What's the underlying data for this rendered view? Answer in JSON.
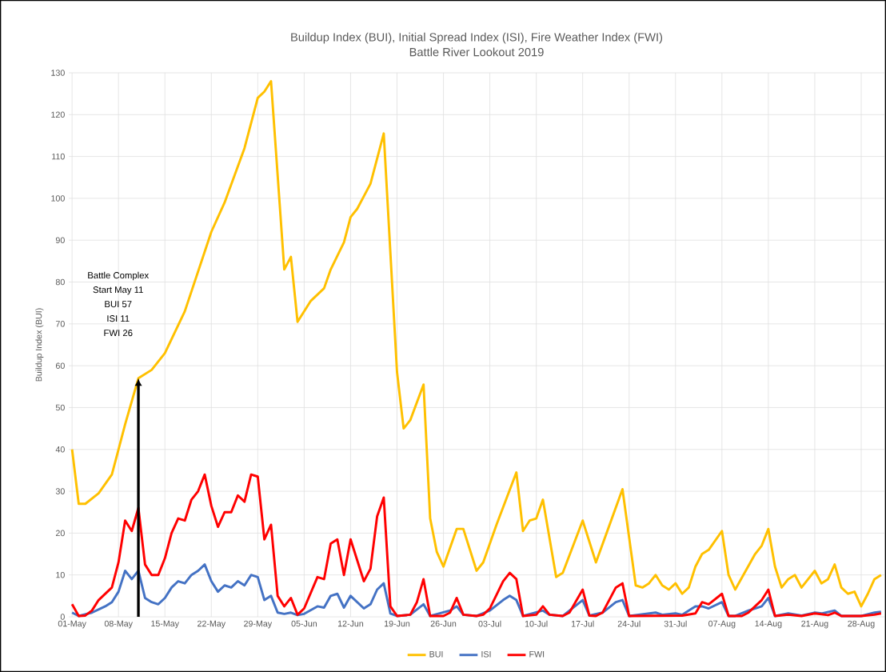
{
  "chart_data": {
    "type": "line",
    "title": "Buildup Index (BUI), Initial Spread Index (ISI), Fire Weather Index (FWI)",
    "subtitle": "Battle River Lookout 2019",
    "ylabel": "Buildup Index (BUI)",
    "xlim": [
      "2019-04-30T12:00",
      "2019-08-31T12:00"
    ],
    "ylim": [
      0,
      130
    ],
    "xticks": [
      {
        "value": "2019-05-01",
        "label": "01-May"
      },
      {
        "value": "2019-05-08",
        "label": "08-May"
      },
      {
        "value": "2019-05-15",
        "label": "15-May"
      },
      {
        "value": "2019-05-22",
        "label": "22-May"
      },
      {
        "value": "2019-05-29",
        "label": "29-May"
      },
      {
        "value": "2019-06-05",
        "label": "05-Jun"
      },
      {
        "value": "2019-06-12",
        "label": "12-Jun"
      },
      {
        "value": "2019-06-19",
        "label": "19-Jun"
      },
      {
        "value": "2019-06-26",
        "label": "26-Jun"
      },
      {
        "value": "2019-07-03",
        "label": "03-Jul"
      },
      {
        "value": "2019-07-10",
        "label": "10-Jul"
      },
      {
        "value": "2019-07-17",
        "label": "17-Jul"
      },
      {
        "value": "2019-07-24",
        "label": "24-Jul"
      },
      {
        "value": "2019-07-31",
        "label": "31-Jul"
      },
      {
        "value": "2019-08-07",
        "label": "07-Aug"
      },
      {
        "value": "2019-08-14",
        "label": "14-Aug"
      },
      {
        "value": "2019-08-21",
        "label": "21-Aug"
      },
      {
        "value": "2019-08-28",
        "label": "28-Aug"
      }
    ],
    "yticks": [
      0,
      10,
      20,
      30,
      40,
      50,
      60,
      70,
      80,
      90,
      100,
      110,
      120,
      130
    ],
    "grid": true,
    "legend": "bottom",
    "marker": "none",
    "line_style": "solid",
    "annotations": [
      "Battle Complex",
      "Start May 11",
      "BUI 57",
      "ISI 11",
      "FWI 26"
    ],
    "ref_lines": [
      {
        "axis": "x",
        "value": "2019-05-11",
        "color": "#000000"
      }
    ],
    "series": [
      {
        "name": "BUI",
        "color": "#ffc000",
        "x": [
          "2019-05-01",
          "2019-05-02",
          "2019-05-03",
          "2019-05-05",
          "2019-05-07",
          "2019-05-08",
          "2019-05-09",
          "2019-05-10",
          "2019-05-11",
          "2019-05-13",
          "2019-05-15",
          "2019-05-18",
          "2019-05-22",
          "2019-05-24",
          "2019-05-27",
          "2019-05-29",
          "2019-05-30",
          "2019-05-31",
          "2019-06-02",
          "2019-06-03",
          "2019-06-04",
          "2019-06-06",
          "2019-06-08",
          "2019-06-09",
          "2019-06-11",
          "2019-06-12",
          "2019-06-13",
          "2019-06-15",
          "2019-06-17",
          "2019-06-19",
          "2019-06-20",
          "2019-06-21",
          "2019-06-23",
          "2019-06-24",
          "2019-06-25",
          "2019-06-26",
          "2019-06-28",
          "2019-06-29",
          "2019-07-01",
          "2019-07-02",
          "2019-07-04",
          "2019-07-07",
          "2019-07-08",
          "2019-07-09",
          "2019-07-10",
          "2019-07-11",
          "2019-07-13",
          "2019-07-14",
          "2019-07-17",
          "2019-07-19",
          "2019-07-23",
          "2019-07-25",
          "2019-07-26",
          "2019-07-27",
          "2019-07-28",
          "2019-07-29",
          "2019-07-30",
          "2019-07-31",
          "2019-08-01",
          "2019-08-02",
          "2019-08-03",
          "2019-08-04",
          "2019-08-05",
          "2019-08-07",
          "2019-08-08",
          "2019-08-09",
          "2019-08-12",
          "2019-08-13",
          "2019-08-14",
          "2019-08-15",
          "2019-08-16",
          "2019-08-17",
          "2019-08-18",
          "2019-08-19",
          "2019-08-21",
          "2019-08-22",
          "2019-08-23",
          "2019-08-24",
          "2019-08-25",
          "2019-08-26",
          "2019-08-27",
          "2019-08-28",
          "2019-08-29",
          "2019-08-30",
          "2019-08-31"
        ],
        "values": [
          40,
          27,
          27,
          29.5,
          34,
          40,
          46,
          51.5,
          57,
          59,
          63,
          73,
          92,
          99,
          112,
          124,
          125.5,
          128,
          83,
          86,
          70.5,
          75.5,
          78.5,
          83,
          89.5,
          95.5,
          97.5,
          103.5,
          115.5,
          58.5,
          45,
          47,
          55.5,
          23.5,
          15.5,
          12,
          21,
          21,
          11,
          13,
          22,
          34.5,
          20.5,
          23,
          23.5,
          28,
          9.5,
          10.5,
          23,
          13,
          30.5,
          7.5,
          7,
          8,
          10,
          7.5,
          6.5,
          8,
          5.5,
          7,
          12,
          15,
          16,
          20.5,
          10,
          6.5,
          15,
          17,
          21,
          12,
          7,
          9,
          10,
          7,
          11,
          8,
          9,
          12.5,
          7,
          5.5,
          6,
          2.5,
          5.5,
          9,
          10
        ]
      },
      {
        "name": "ISI",
        "color": "#4472c4",
        "x": [
          "2019-05-01",
          "2019-05-02",
          "2019-05-04",
          "2019-05-06",
          "2019-05-07",
          "2019-05-08",
          "2019-05-09",
          "2019-05-10",
          "2019-05-11",
          "2019-05-12",
          "2019-05-13",
          "2019-05-14",
          "2019-05-15",
          "2019-05-16",
          "2019-05-17",
          "2019-05-18",
          "2019-05-19",
          "2019-05-20",
          "2019-05-21",
          "2019-05-22",
          "2019-05-23",
          "2019-05-24",
          "2019-05-25",
          "2019-05-26",
          "2019-05-27",
          "2019-05-28",
          "2019-05-29",
          "2019-05-30",
          "2019-05-31",
          "2019-06-01",
          "2019-06-02",
          "2019-06-03",
          "2019-06-04",
          "2019-06-05",
          "2019-06-07",
          "2019-06-08",
          "2019-06-09",
          "2019-06-10",
          "2019-06-11",
          "2019-06-12",
          "2019-06-14",
          "2019-06-15",
          "2019-06-16",
          "2019-06-17",
          "2019-06-18",
          "2019-06-19",
          "2019-06-21",
          "2019-06-23",
          "2019-06-24",
          "2019-06-27",
          "2019-06-28",
          "2019-06-29",
          "2019-07-01",
          "2019-07-03",
          "2019-07-05",
          "2019-07-06",
          "2019-07-07",
          "2019-07-08",
          "2019-07-11",
          "2019-07-12",
          "2019-07-14",
          "2019-07-17",
          "2019-07-18",
          "2019-07-20",
          "2019-07-22",
          "2019-07-23",
          "2019-07-24",
          "2019-07-28",
          "2019-07-29",
          "2019-07-31",
          "2019-08-01",
          "2019-08-03",
          "2019-08-04",
          "2019-08-05",
          "2019-08-07",
          "2019-08-08",
          "2019-08-09",
          "2019-08-11",
          "2019-08-12",
          "2019-08-13",
          "2019-08-14",
          "2019-08-15",
          "2019-08-17",
          "2019-08-19",
          "2019-08-21",
          "2019-08-22",
          "2019-08-24",
          "2019-08-25",
          "2019-08-28",
          "2019-08-30",
          "2019-08-31"
        ],
        "values": [
          1,
          0.2,
          1,
          2.5,
          3.5,
          6,
          11,
          9,
          11,
          4.5,
          3.5,
          3,
          4.5,
          7,
          8.5,
          8,
          10,
          11,
          12.5,
          8.5,
          6,
          7.5,
          7,
          8.5,
          7.5,
          10,
          9.5,
          4,
          5,
          1,
          0.7,
          1,
          0.4,
          0.7,
          2.5,
          2.2,
          5,
          5.5,
          2.2,
          5,
          2,
          3,
          6.5,
          8,
          0.8,
          0.2,
          0.5,
          3,
          0.2,
          1.5,
          2.5,
          0.5,
          0.2,
          1.5,
          4,
          5,
          4,
          0.2,
          1.5,
          0.5,
          0.2,
          4,
          0.3,
          1,
          3.5,
          4,
          0.2,
          1,
          0.5,
          0.8,
          0.5,
          2.5,
          2.5,
          2,
          3.5,
          0.2,
          0.2,
          1.5,
          2,
          2.5,
          4.5,
          0.2,
          0.8,
          0.3,
          1,
          0.8,
          1.5,
          0.2,
          0.2,
          1,
          1.2
        ]
      },
      {
        "name": "FWI",
        "color": "#ff0000",
        "x": [
          "2019-05-01",
          "2019-05-02",
          "2019-05-03",
          "2019-05-04",
          "2019-05-05",
          "2019-05-07",
          "2019-05-08",
          "2019-05-09",
          "2019-05-10",
          "2019-05-11",
          "2019-05-12",
          "2019-05-13",
          "2019-05-14",
          "2019-05-15",
          "2019-05-16",
          "2019-05-17",
          "2019-05-18",
          "2019-05-19",
          "2019-05-20",
          "2019-05-21",
          "2019-05-22",
          "2019-05-23",
          "2019-05-24",
          "2019-05-25",
          "2019-05-26",
          "2019-05-27",
          "2019-05-28",
          "2019-05-29",
          "2019-05-30",
          "2019-05-31",
          "2019-06-01",
          "2019-06-02",
          "2019-06-03",
          "2019-06-04",
          "2019-06-05",
          "2019-06-07",
          "2019-06-08",
          "2019-06-09",
          "2019-06-10",
          "2019-06-11",
          "2019-06-12",
          "2019-06-14",
          "2019-06-15",
          "2019-06-16",
          "2019-06-17",
          "2019-06-18",
          "2019-06-19",
          "2019-06-21",
          "2019-06-22",
          "2019-06-23",
          "2019-06-24",
          "2019-06-26",
          "2019-06-27",
          "2019-06-28",
          "2019-06-29",
          "2019-07-01",
          "2019-07-02",
          "2019-07-03",
          "2019-07-05",
          "2019-07-06",
          "2019-07-07",
          "2019-07-08",
          "2019-07-10",
          "2019-07-11",
          "2019-07-12",
          "2019-07-14",
          "2019-07-15",
          "2019-07-17",
          "2019-07-18",
          "2019-07-19",
          "2019-07-20",
          "2019-07-22",
          "2019-07-23",
          "2019-07-24",
          "2019-08-01",
          "2019-08-03",
          "2019-08-04",
          "2019-08-05",
          "2019-08-07",
          "2019-08-08",
          "2019-08-10",
          "2019-08-11",
          "2019-08-12",
          "2019-08-13",
          "2019-08-14",
          "2019-08-15",
          "2019-08-17",
          "2019-08-19",
          "2019-08-21",
          "2019-08-23",
          "2019-08-24",
          "2019-08-25",
          "2019-08-28",
          "2019-08-30",
          "2019-08-31"
        ],
        "values": [
          3,
          0.2,
          0.3,
          1.5,
          4,
          7,
          13,
          23,
          20.5,
          26,
          12.5,
          10,
          10,
          14,
          20,
          23.5,
          23,
          28,
          30,
          34,
          26.5,
          21.5,
          25,
          25,
          29,
          27.5,
          34,
          33.5,
          18.5,
          22,
          5,
          2.5,
          4.5,
          0.5,
          2,
          9.5,
          9,
          17.5,
          18.5,
          10,
          18.5,
          8.5,
          11.5,
          24,
          28.5,
          2.5,
          0.2,
          0.5,
          3.5,
          9,
          0.2,
          0.2,
          1,
          4.5,
          0.5,
          0.2,
          0.5,
          2,
          8.5,
          10.5,
          9,
          0.2,
          0.5,
          2.5,
          0.5,
          0.2,
          1,
          6.5,
          0.3,
          0.2,
          1,
          7,
          8,
          0.2,
          0.3,
          0.8,
          3.5,
          3,
          5.5,
          0.2,
          0.2,
          1,
          2.5,
          4,
          6.5,
          0.2,
          0.5,
          0.2,
          0.8,
          0.4,
          1,
          0.2,
          0.2,
          0.5,
          0.8
        ]
      }
    ]
  }
}
